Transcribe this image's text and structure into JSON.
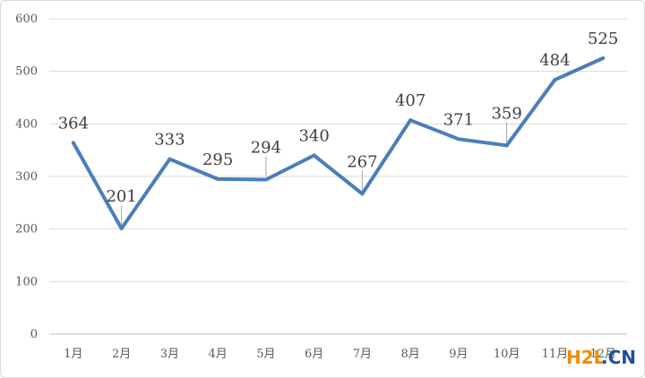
{
  "chart_data": {
    "type": "line",
    "categories": [
      "1月",
      "2月",
      "3月",
      "4月",
      "5月",
      "6月",
      "7月",
      "8月",
      "9月",
      "10月",
      "11月",
      "12月"
    ],
    "series": [
      {
        "values": [
          364,
          201,
          333,
          295,
          294,
          340,
          267,
          407,
          371,
          359,
          484,
          525
        ],
        "color": "#4a7ebb"
      }
    ],
    "ylim": [
      0,
      600
    ],
    "yticks": [
      0,
      100,
      200,
      300,
      400,
      500,
      600
    ],
    "grid": true,
    "legend": "none",
    "data_labels": true
  },
  "watermark": {
    "text_a": "H2L",
    "text_b": ".CN"
  }
}
